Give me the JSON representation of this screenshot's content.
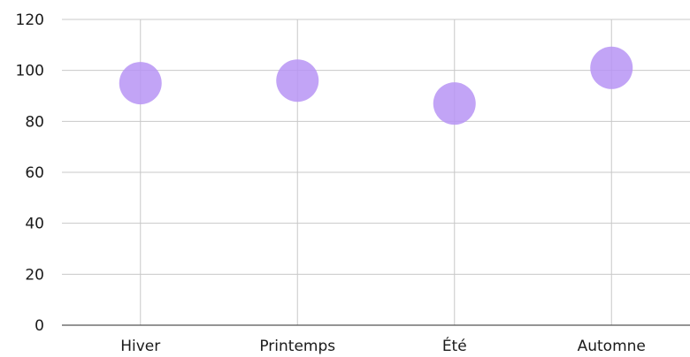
{
  "chart_data": {
    "type": "scatter",
    "title": "",
    "xlabel": "",
    "ylabel": "",
    "categories": [
      "Hiver",
      "Printemps",
      "Été",
      "Automne"
    ],
    "series": [
      {
        "values": [
          95,
          96,
          87,
          101
        ]
      }
    ],
    "ylim": [
      0,
      120
    ],
    "yticks": [
      "0",
      "20",
      "40",
      "60",
      "80",
      "100",
      "120"
    ],
    "grid": true,
    "legend": "none",
    "colors": {
      "point": "#b794f4",
      "grid": "#c8c8c8",
      "axis": "#555555"
    }
  }
}
